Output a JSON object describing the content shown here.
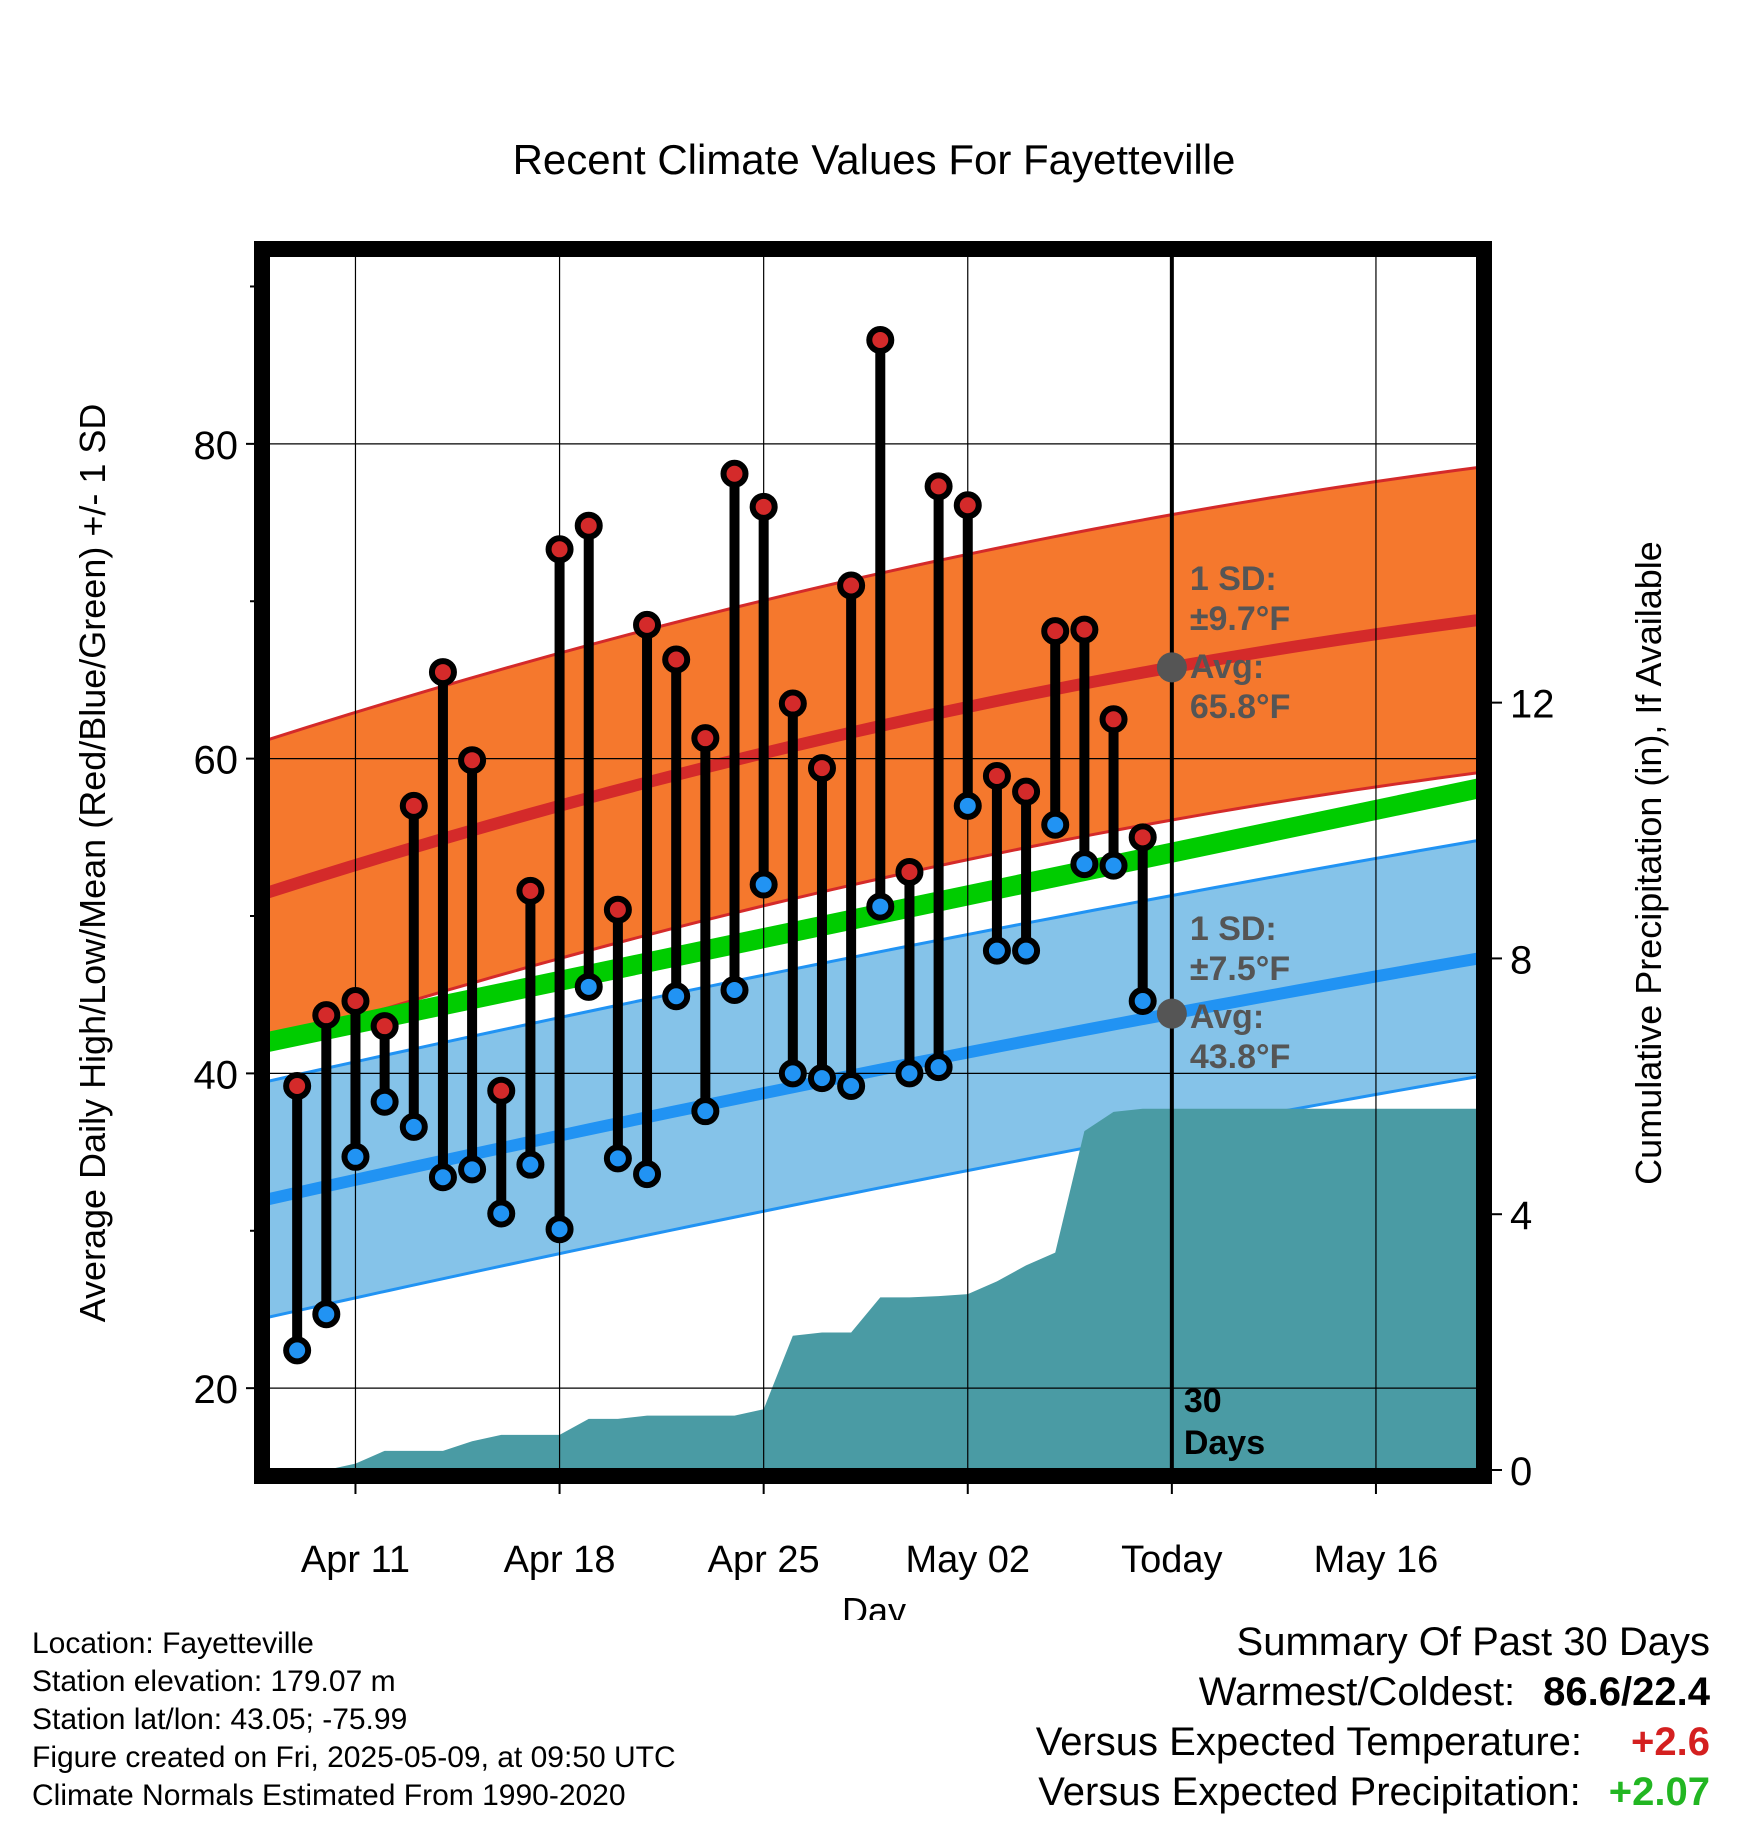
{
  "chart_data": {
    "type": "scatter",
    "title": "Recent Climate Values For Fayetteville",
    "xlabel": "Day",
    "ylabel_left": "Average Daily High/Low/Mean (Red/Blue/Green) +/- 1 SD",
    "ylabel_right": "Cumulative Precipitation (in), If Available",
    "x_day_range": [
      -31,
      10.5
    ],
    "y_range": [
      14.8,
      92
    ],
    "precip_range": [
      0,
      19
    ],
    "x_tick_labels": [
      "Apr 11",
      "Apr 18",
      "Apr 25",
      "May 02",
      "Today",
      "May 16"
    ],
    "x_tick_days": [
      -28,
      -21,
      -14,
      -7,
      0,
      7
    ],
    "y_tick_labels": [
      "20",
      "40",
      "60",
      "80"
    ],
    "y_tick_values": [
      20,
      40,
      60,
      80
    ],
    "y_minor_ticks": [
      30,
      50,
      70,
      90
    ],
    "precip_tick_labels": [
      "0",
      "4",
      "8",
      "12"
    ],
    "precip_tick_values": [
      0,
      4,
      8,
      12
    ],
    "days": [
      -30,
      -29,
      -28,
      -27,
      -26,
      -25,
      -24,
      -23,
      -22,
      -21,
      -20,
      -19,
      -18,
      -17,
      -16,
      -15,
      -14,
      -13,
      -12,
      -11,
      -10,
      -9,
      -8,
      -7,
      -6,
      -5,
      -4,
      -3,
      -2,
      -1
    ],
    "highs": [
      39.2,
      43.7,
      44.6,
      43.0,
      57.0,
      65.5,
      59.9,
      38.9,
      51.6,
      73.3,
      74.8,
      50.4,
      68.5,
      66.3,
      61.3,
      78.1,
      76.0,
      63.5,
      59.4,
      71.0,
      86.6,
      52.8,
      77.3,
      76.1,
      58.9,
      57.9,
      68.1,
      68.2,
      62.5,
      55.0
    ],
    "lows": [
      22.4,
      24.7,
      34.7,
      38.2,
      36.6,
      33.4,
      33.9,
      31.1,
      34.2,
      30.1,
      45.5,
      34.6,
      33.6,
      44.9,
      37.6,
      45.3,
      52.0,
      40.0,
      39.7,
      39.2,
      50.6,
      40.0,
      40.4,
      57.0,
      47.8,
      47.8,
      55.8,
      53.3,
      53.2,
      44.6
    ],
    "normal_high": {
      "name": "Avg:",
      "value_label": "65.8°F",
      "sd_label": "±9.7°F",
      "sd_title": "1 SD:",
      "start": 51.5,
      "today": 65.8,
      "end": 68.8,
      "sd": 9.7
    },
    "normal_low": {
      "name": "Avg:",
      "value_label": "43.8°F",
      "sd_label": "±7.5°F",
      "sd_title": "1 SD:",
      "start": 32.0,
      "today": 43.8,
      "end": 47.3,
      "sd": 7.5
    },
    "normal_mean": {
      "start": 42.0,
      "end": 58.1
    },
    "precip_days": [
      -32,
      -31,
      -30,
      -29,
      -28,
      -27,
      -26,
      -25,
      -24,
      -23,
      -22,
      -21,
      -20,
      -19,
      -18,
      -17,
      -16,
      -15,
      -14,
      -13,
      -12,
      -11,
      -10,
      -9,
      -8,
      -7,
      -6,
      -5,
      -4,
      -3,
      -2,
      -1,
      0,
      10.5
    ],
    "precip_cum": [
      0,
      0,
      0,
      0,
      0.1,
      0.3,
      0.3,
      0.3,
      0.45,
      0.55,
      0.55,
      0.55,
      0.8,
      0.8,
      0.85,
      0.85,
      0.85,
      0.85,
      0.95,
      2.1,
      2.15,
      2.15,
      2.7,
      2.7,
      2.72,
      2.75,
      2.95,
      3.2,
      3.4,
      5.3,
      5.6,
      5.65,
      5.65,
      5.65
    ],
    "today_label": "30\nDays",
    "legend": "none",
    "grid": true,
    "colors": {
      "high": "#d42a2a",
      "low": "#2193f3",
      "mean": "#00cc00",
      "high_band": "#f5782d",
      "low_band": "#85c3e9",
      "precip": "#4a9ba4"
    }
  },
  "info": {
    "location": "Location: Fayetteville",
    "elevation": "Station elevation: 179.07 m",
    "latlon": "Station lat/lon: 43.05; -75.99",
    "created": "Figure created on Fri, 2025-05-09, at 09:50 UTC",
    "normals": "Climate Normals Estimated From 1990-2020"
  },
  "summary": {
    "title": "Summary Of Past 30 Days",
    "warm_cold_label": "Warmest/Coldest:",
    "warm_cold_value": "86.6/22.4",
    "temp_label": "Versus Expected Temperature:",
    "temp_value": "+2.6",
    "precip_label": "Versus Expected Precipitation:",
    "precip_value": "+2.07"
  }
}
